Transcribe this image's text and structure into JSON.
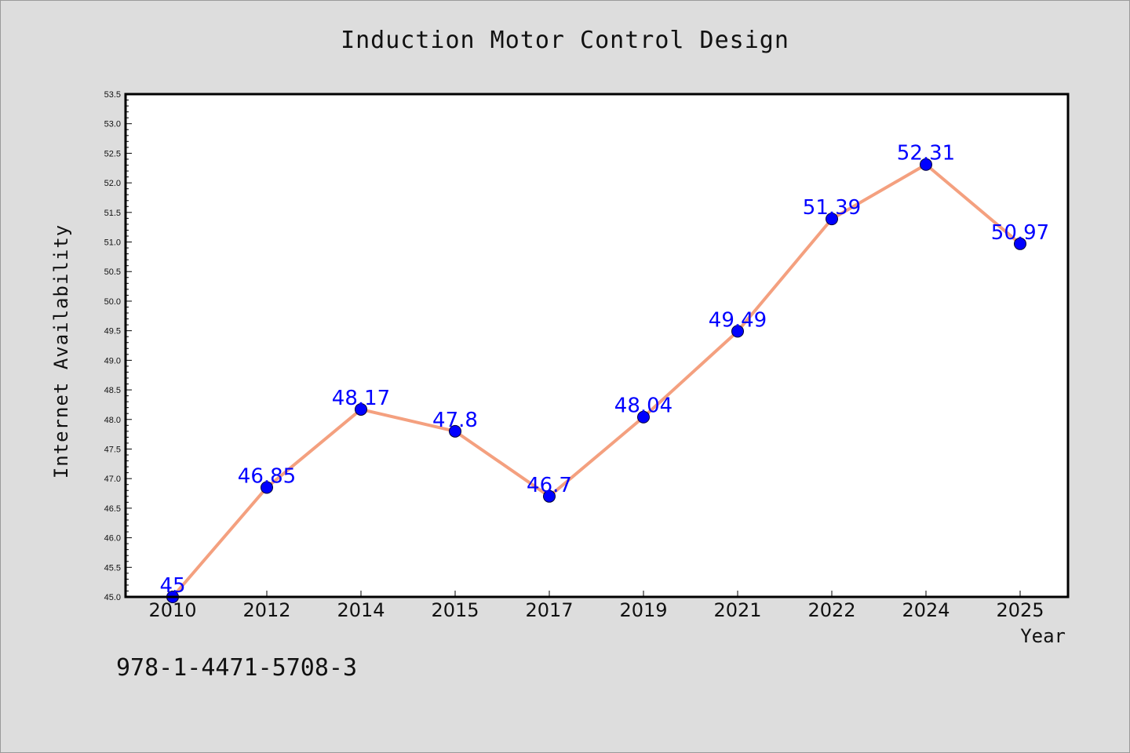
{
  "chart_data": {
    "type": "line",
    "title": "Induction Motor Control Design",
    "xlabel": "Year",
    "ylabel": "Internet Availability",
    "categories": [
      "2010",
      "2012",
      "2014",
      "2015",
      "2017",
      "2019",
      "2021",
      "2022",
      "2024",
      "2025"
    ],
    "series": [
      {
        "values": [
          45,
          46.85,
          48.17,
          47.8,
          46.7,
          48.04,
          49.49,
          51.39,
          52.31,
          50.97
        ],
        "labels": [
          "45",
          "46.85",
          "48.17",
          "47.8",
          "46.7",
          "48.04",
          "49.49",
          "51.39",
          "52.31",
          "50.97"
        ],
        "line_color": "#f4a07f",
        "marker_color": "#0000ff"
      }
    ],
    "ylim": [
      45.0,
      53.5
    ],
    "yticks": [
      "45.0",
      "45.5",
      "46.0",
      "46.5",
      "47.0",
      "47.5",
      "48.0",
      "48.5",
      "49.0",
      "49.5",
      "50.0",
      "50.5",
      "51.0",
      "51.5",
      "52.0",
      "52.5",
      "53.0",
      "53.5"
    ],
    "grid": false,
    "legend": "none",
    "label_color": "#0000ff",
    "background": "#dddddd",
    "plot_background": "#ffffff"
  },
  "footnote": "978-1-4471-5708-3"
}
